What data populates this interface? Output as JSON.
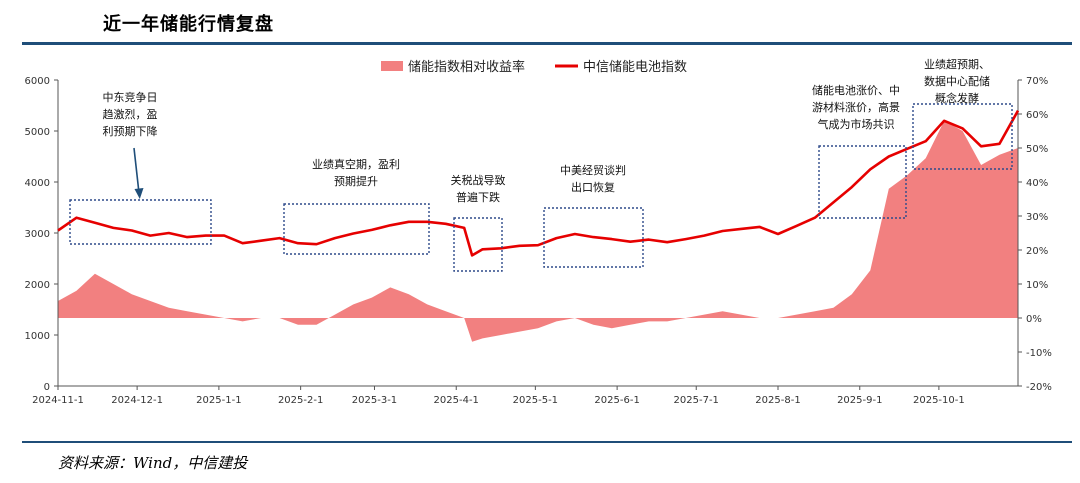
{
  "header": {
    "title": "近一年储能行情复盘"
  },
  "footer": {
    "source": "资料来源：Wind，中信建投"
  },
  "colors": {
    "index_line": "#e60000",
    "excess_area": "#f28080",
    "box": "#2e4a8a",
    "arrow": "#1f4e79",
    "rule": "#1f4e79"
  },
  "chart_data": {
    "type": "line",
    "title": "",
    "legend_position": "top-center",
    "grid": false,
    "x_dates": [
      "2024-11-01",
      "2024-11-08",
      "2024-11-15",
      "2024-11-22",
      "2024-11-29",
      "2024-12-06",
      "2024-12-13",
      "2024-12-20",
      "2024-12-27",
      "2025-01-03",
      "2025-01-10",
      "2025-01-17",
      "2025-01-24",
      "2025-01-31",
      "2025-02-07",
      "2025-02-14",
      "2025-02-21",
      "2025-02-28",
      "2025-03-07",
      "2025-03-14",
      "2025-03-21",
      "2025-03-28",
      "2025-04-04",
      "2025-04-07",
      "2025-04-11",
      "2025-04-18",
      "2025-04-25",
      "2025-05-02",
      "2025-05-09",
      "2025-05-16",
      "2025-05-23",
      "2025-05-30",
      "2025-06-06",
      "2025-06-13",
      "2025-06-20",
      "2025-06-27",
      "2025-07-04",
      "2025-07-11",
      "2025-07-18",
      "2025-07-25",
      "2025-08-01",
      "2025-08-08",
      "2025-08-15",
      "2025-08-22",
      "2025-08-29",
      "2025-09-05",
      "2025-09-12",
      "2025-09-19",
      "2025-09-26",
      "2025-10-03",
      "2025-10-10",
      "2025-10-17",
      "2025-10-24",
      "2025-10-31"
    ],
    "x_tick_labels": [
      "2024-11-1",
      "2024-12-1",
      "2025-1-1",
      "2025-2-1",
      "2025-3-1",
      "2025-4-1",
      "2025-5-1",
      "2025-6-1",
      "2025-7-1",
      "2025-8-1",
      "2025-9-1",
      "2025-10-1"
    ],
    "x_tick_dates": [
      "2024-11-01",
      "2024-12-01",
      "2025-01-01",
      "2025-02-01",
      "2025-03-01",
      "2025-04-01",
      "2025-05-01",
      "2025-06-01",
      "2025-07-01",
      "2025-08-01",
      "2025-09-01",
      "2025-10-01"
    ],
    "x_range": [
      "2024-11-01",
      "2025-10-31"
    ],
    "y_left": {
      "min": 0,
      "max": 6000,
      "ticks": [
        "0",
        "1000",
        "2000",
        "3000",
        "4000",
        "5000",
        "6000"
      ]
    },
    "y_right": {
      "min": -20,
      "max": 70,
      "ticks": [
        "-20%",
        "-10%",
        "0%",
        "10%",
        "20%",
        "30%",
        "40%",
        "50%",
        "60%",
        "70%"
      ]
    },
    "series": [
      {
        "name": "储能指数相对收益率",
        "kind": "area",
        "axis": "right",
        "values": [
          5,
          8,
          13,
          10,
          7,
          5,
          3,
          2,
          1,
          0,
          -1,
          0,
          0,
          -2,
          -2,
          1,
          4,
          6,
          9,
          7,
          4,
          2,
          0,
          -7,
          -6,
          -5,
          -4,
          -3,
          -1,
          0,
          -2,
          -3,
          -2,
          -1,
          -1,
          0,
          1,
          2,
          1,
          0,
          0,
          1,
          2,
          3,
          7,
          14,
          38,
          42,
          47,
          58,
          55,
          45,
          48,
          50
        ]
      },
      {
        "name": "中信储能电池指数",
        "kind": "line",
        "axis": "left",
        "values": [
          3050,
          3300,
          3200,
          3100,
          3050,
          2950,
          3000,
          2920,
          2950,
          2950,
          2800,
          2850,
          2900,
          2800,
          2780,
          2900,
          2990,
          3060,
          3150,
          3220,
          3220,
          3180,
          3100,
          2560,
          2680,
          2700,
          2750,
          2760,
          2900,
          2980,
          2920,
          2880,
          2830,
          2870,
          2820,
          2880,
          2950,
          3040,
          3080,
          3120,
          2980,
          3140,
          3300,
          3600,
          3900,
          4250,
          4500,
          4650,
          4800,
          5200,
          5050,
          4700,
          4750,
          5400
        ]
      }
    ],
    "annotations": [
      {
        "lines": [
          "中东竞争日",
          "趋激烈，盈",
          "利预期下降"
        ]
      },
      {
        "lines": [
          "业绩真空期，盈利",
          "预期提升"
        ]
      },
      {
        "lines": [
          "关税战导致",
          "普遍下跌"
        ]
      },
      {
        "lines": [
          "中美经贸谈判",
          "出口恢复"
        ]
      },
      {
        "lines": [
          "储能电池涨价、中",
          "游材料涨价，高景",
          "气成为市场共识"
        ]
      },
      {
        "lines": [
          "业绩超预期、",
          "数据中心配储",
          "概念发酵"
        ]
      }
    ]
  }
}
